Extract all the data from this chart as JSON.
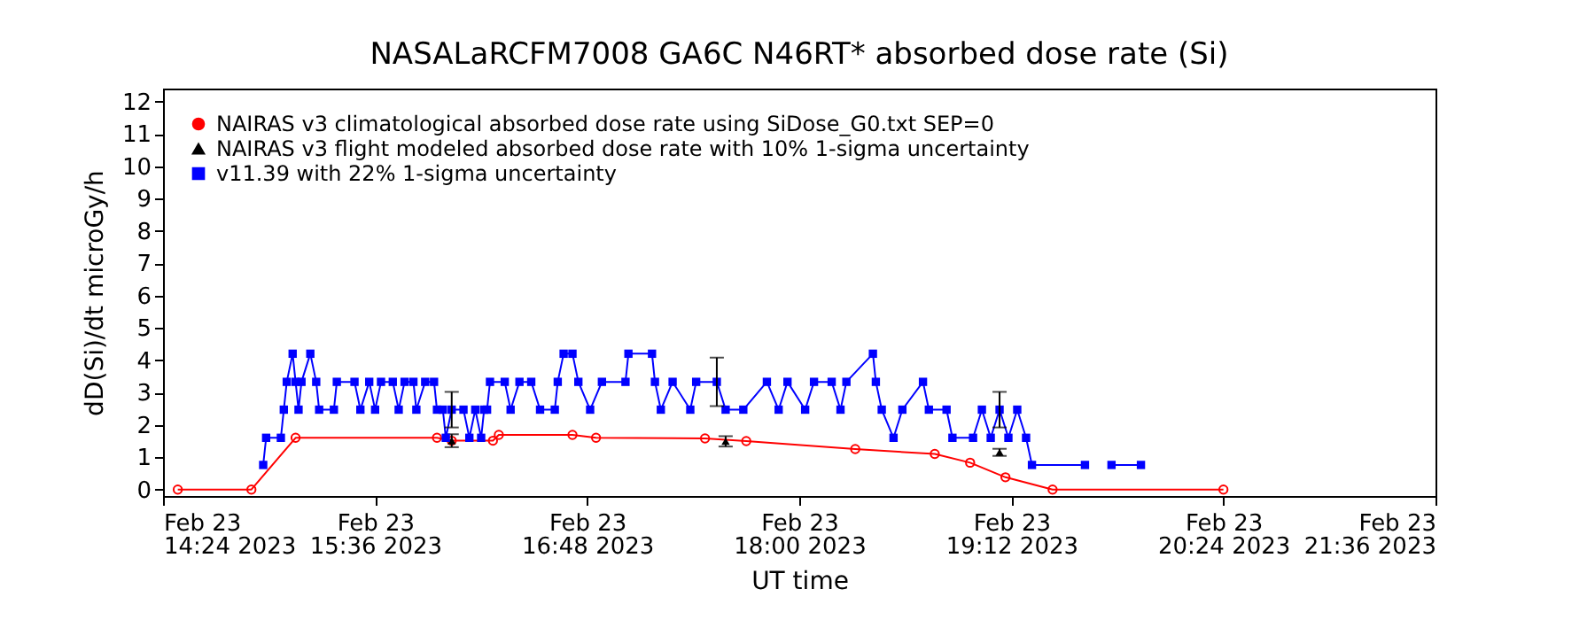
{
  "chart_data": {
    "type": "line",
    "title": "NASALaRCFM7008  GA6C N46RT* absorbed dose rate (Si)",
    "xlabel": "UT time",
    "ylabel": "dD(Si)/dt microGy/h",
    "xlim": [
      "2023-02-23T14:24",
      "2023-02-23T21:36"
    ],
    "xticks": [
      {
        "value": "2023-02-23T14:24",
        "label": "Feb 23\n14:24 2023"
      },
      {
        "value": "2023-02-23T15:36",
        "label": "Feb 23\n15:36 2023"
      },
      {
        "value": "2023-02-23T16:48",
        "label": "Feb 23\n16:48 2023"
      },
      {
        "value": "2023-02-23T18:00",
        "label": "Feb 23\n18:00 2023"
      },
      {
        "value": "2023-02-23T19:12",
        "label": "Feb 23\n19:12 2023"
      },
      {
        "value": "2023-02-23T20:24",
        "label": "Feb 23\n20:24 2023"
      },
      {
        "value": "2023-02-23T21:36",
        "label": "Feb 23\n21:36 2023"
      }
    ],
    "ylim": [
      -0.2,
      12.4
    ],
    "yticks": [
      0,
      1,
      2,
      3,
      4,
      5,
      6,
      7,
      8,
      9,
      10,
      11,
      12
    ],
    "grid": false,
    "legend": "top left",
    "series": [
      {
        "name": "NAIRAS v3 climatological absorbed dose rate using SiDose_G0.txt SEP=0",
        "marker": "circle",
        "color": "#ff0000",
        "x": [
          "2023-02-23T14:29",
          "2023-02-23T14:54",
          "2023-02-23T15:09",
          "2023-02-23T15:57",
          "2023-02-23T16:02",
          "2023-02-23T16:16",
          "2023-02-23T16:18",
          "2023-02-23T16:43",
          "2023-02-23T16:51",
          "2023-02-23T17:28",
          "2023-02-23T17:42",
          "2023-02-23T18:19",
          "2023-02-23T18:46",
          "2023-02-23T18:58",
          "2023-02-23T19:10",
          "2023-02-23T19:26",
          "2023-02-23T20:24"
        ],
        "values": [
          0,
          0,
          1.6,
          1.6,
          1.51,
          1.51,
          1.69,
          1.69,
          1.6,
          1.58,
          1.5,
          1.25,
          1.1,
          0.83,
          0.38,
          0,
          0
        ]
      },
      {
        "name": "NAIRAS v3 flight modeled absorbed dose rate with 10% 1-sigma uncertainty",
        "type": "scatter",
        "marker": "triangle",
        "color": "#000000",
        "x": [
          "2023-02-23T16:02",
          "2023-02-23T17:35",
          "2023-02-23T19:08"
        ],
        "values": [
          1.51,
          1.49,
          1.15
        ],
        "errors": [
          0.2,
          0.16,
          0.11
        ]
      },
      {
        "name": "v11.39 with 22% 1-sigma uncertainty",
        "marker": "square",
        "color": "#0000ff",
        "x": [
          "2023-02-23T14:58",
          "2023-02-23T14:59",
          "2023-02-23T15:04",
          "2023-02-23T15:05",
          "2023-02-23T15:06",
          "2023-02-23T15:08",
          "2023-02-23T15:09",
          "2023-02-23T15:10",
          "2023-02-23T15:11",
          "2023-02-23T15:14",
          "2023-02-23T15:16",
          "2023-02-23T15:17",
          "2023-02-23T15:22",
          "2023-02-23T15:23",
          "2023-02-23T15:29",
          "2023-02-23T15:31",
          "2023-02-23T15:34",
          "2023-02-23T15:36",
          "2023-02-23T15:38",
          "2023-02-23T15:42",
          "2023-02-23T15:44",
          "2023-02-23T15:46",
          "2023-02-23T15:49",
          "2023-02-23T15:50",
          "2023-02-23T15:53",
          "2023-02-23T15:56",
          "2023-02-23T15:57",
          "2023-02-23T15:59",
          "2023-02-23T16:00",
          "2023-02-23T16:02",
          "2023-02-23T16:06",
          "2023-02-23T16:08",
          "2023-02-23T16:10",
          "2023-02-23T16:12",
          "2023-02-23T16:13",
          "2023-02-23T16:14",
          "2023-02-23T16:15",
          "2023-02-23T16:20",
          "2023-02-23T16:22",
          "2023-02-23T16:25",
          "2023-02-23T16:29",
          "2023-02-23T16:32",
          "2023-02-23T16:37",
          "2023-02-23T16:38",
          "2023-02-23T16:40",
          "2023-02-23T16:43",
          "2023-02-23T16:45",
          "2023-02-23T16:49",
          "2023-02-23T16:53",
          "2023-02-23T17:01",
          "2023-02-23T17:02",
          "2023-02-23T17:10",
          "2023-02-23T17:11",
          "2023-02-23T17:13",
          "2023-02-23T17:17",
          "2023-02-23T17:23",
          "2023-02-23T17:25",
          "2023-02-23T17:32",
          "2023-02-23T17:35",
          "2023-02-23T17:41",
          "2023-02-23T17:49",
          "2023-02-23T17:53",
          "2023-02-23T17:56",
          "2023-02-23T18:02",
          "2023-02-23T18:05",
          "2023-02-23T18:11",
          "2023-02-23T18:14",
          "2023-02-23T18:16",
          "2023-02-23T18:25",
          "2023-02-23T18:26",
          "2023-02-23T18:28",
          "2023-02-23T18:32",
          "2023-02-23T18:35",
          "2023-02-23T18:42",
          "2023-02-23T18:44",
          "2023-02-23T18:50",
          "2023-02-23T18:52",
          "2023-02-23T18:59",
          "2023-02-23T19:02",
          "2023-02-23T19:05",
          "2023-02-23T19:08",
          "2023-02-23T19:11",
          "2023-02-23T19:14",
          "2023-02-23T19:17",
          "2023-02-23T19:19",
          "2023-02-23T19:37",
          "2023-02-23T19:41",
          "2023-02-23T19:46",
          "2023-02-23T19:56"
        ],
        "values": [
          0.76,
          1.6,
          1.6,
          2.47,
          3.33,
          4.2,
          3.33,
          2.47,
          3.33,
          4.2,
          3.33,
          2.47,
          2.47,
          3.33,
          3.33,
          2.47,
          3.33,
          2.47,
          3.33,
          3.33,
          2.47,
          3.33,
          3.33,
          2.47,
          3.33,
          3.33,
          2.47,
          2.47,
          1.6,
          2.47,
          2.47,
          1.6,
          2.47,
          1.6,
          2.47,
          2.47,
          3.33,
          3.33,
          2.47,
          3.33,
          3.33,
          2.47,
          2.47,
          3.33,
          4.2,
          4.2,
          3.33,
          2.47,
          3.33,
          3.33,
          4.2,
          4.2,
          3.33,
          2.47,
          3.33,
          2.47,
          3.33,
          3.33,
          2.47,
          2.47,
          3.33,
          2.47,
          3.33,
          2.47,
          3.33,
          3.33,
          2.47,
          3.33,
          4.2,
          3.33,
          2.47,
          1.6,
          2.47,
          3.33,
          2.47,
          2.47,
          1.6,
          1.6,
          2.47,
          1.6,
          2.47,
          1.6,
          2.47,
          1.6,
          0.76,
          0.76,
          null,
          0.76,
          0.76
        ],
        "errors": [
          null,
          null,
          null,
          null,
          null,
          null,
          null,
          null,
          null,
          null,
          null,
          null,
          null,
          null,
          null,
          null,
          null,
          null,
          null,
          null,
          null,
          null,
          null,
          null,
          null,
          null,
          null,
          null,
          null,
          0.55,
          null,
          null,
          null,
          null,
          null,
          null,
          null,
          null,
          null,
          null,
          null,
          null,
          null,
          null,
          null,
          null,
          null,
          null,
          null,
          null,
          null,
          null,
          null,
          null,
          null,
          null,
          null,
          0.75,
          null,
          null,
          null,
          null,
          null,
          null,
          null,
          null,
          null,
          null,
          null,
          null,
          null,
          null,
          null,
          null,
          null,
          null,
          null,
          null,
          null,
          null,
          0.55,
          null,
          null,
          null,
          null,
          null,
          null,
          null,
          null
        ]
      }
    ]
  }
}
